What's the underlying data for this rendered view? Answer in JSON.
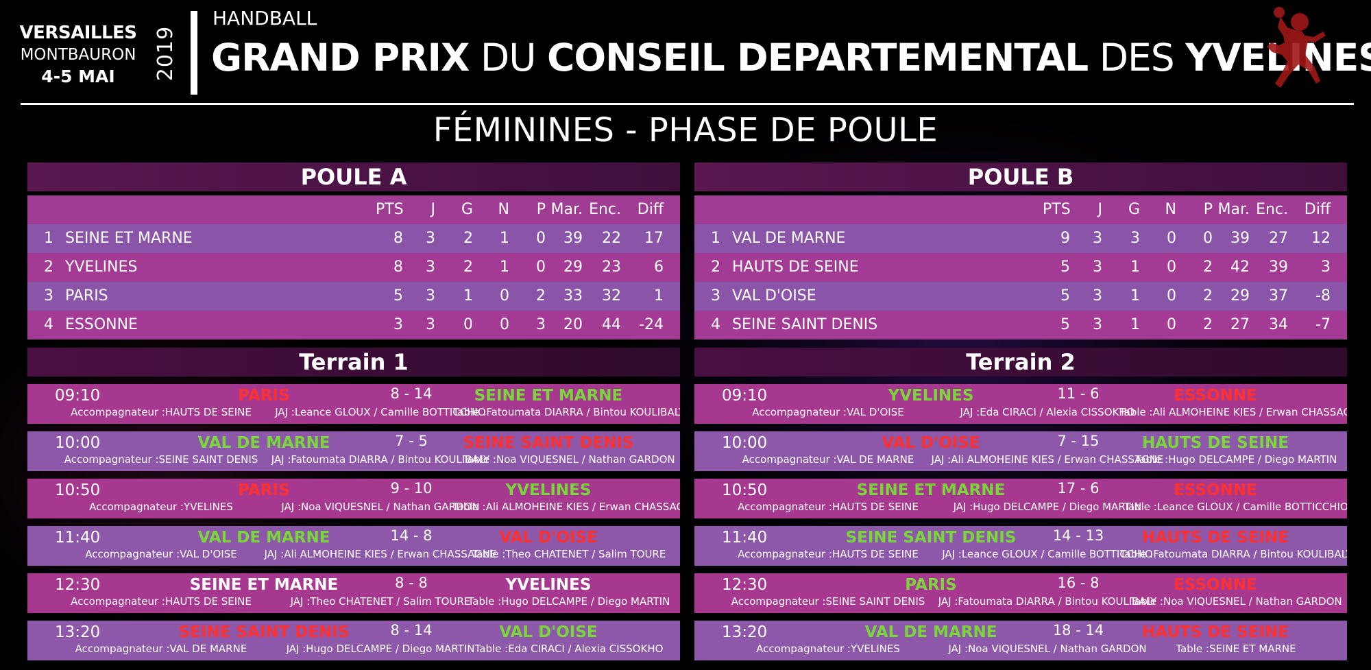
{
  "header": {
    "venue_line1": "VERSAILLES",
    "venue_line2": "MONTBAURON",
    "venue_line3": "4-5 MAI",
    "year": "2019",
    "sport": "HANDBALL",
    "title_part1": "GRAND PRIX",
    "title_part2": " DU ",
    "title_part3": "CONSEIL DEPARTEMENTAL",
    "title_part4": " DES ",
    "title_part5": "YVELINES",
    "subtitle": "FÉMININES - PHASE DE POULE"
  },
  "colors": {
    "win": "#7ad63a",
    "loss": "#ff3030",
    "draw": "#ffffff",
    "panel_pink": "#a33a93",
    "panel_violet": "#8a55a8"
  },
  "poules": [
    {
      "title": "POULE A",
      "columns": {
        "pts": "PTS",
        "j": "J",
        "g": "G",
        "n": "N",
        "p": "P",
        "mar": "Mar.",
        "enc": "Enc.",
        "diff": "Diff"
      },
      "rows": [
        {
          "rank": "1",
          "team": "SEINE ET MARNE",
          "pts": "8",
          "j": "3",
          "g": "2",
          "n": "1",
          "p": "0",
          "mar": "39",
          "enc": "22",
          "diff": "17"
        },
        {
          "rank": "2",
          "team": "YVELINES",
          "pts": "8",
          "j": "3",
          "g": "2",
          "n": "1",
          "p": "0",
          "mar": "29",
          "enc": "23",
          "diff": "6"
        },
        {
          "rank": "3",
          "team": "PARIS",
          "pts": "5",
          "j": "3",
          "g": "1",
          "n": "0",
          "p": "2",
          "mar": "33",
          "enc": "32",
          "diff": "1"
        },
        {
          "rank": "4",
          "team": "ESSONNE",
          "pts": "3",
          "j": "3",
          "g": "0",
          "n": "0",
          "p": "3",
          "mar": "20",
          "enc": "44",
          "diff": "-24"
        }
      ]
    },
    {
      "title": "POULE B",
      "columns": {
        "pts": "PTS",
        "j": "J",
        "g": "G",
        "n": "N",
        "p": "P",
        "mar": "Mar.",
        "enc": "Enc.",
        "diff": "Diff"
      },
      "rows": [
        {
          "rank": "1",
          "team": "VAL DE MARNE",
          "pts": "9",
          "j": "3",
          "g": "3",
          "n": "0",
          "p": "0",
          "mar": "39",
          "enc": "27",
          "diff": "12"
        },
        {
          "rank": "2",
          "team": "HAUTS DE SEINE",
          "pts": "5",
          "j": "3",
          "g": "1",
          "n": "0",
          "p": "2",
          "mar": "42",
          "enc": "39",
          "diff": "3"
        },
        {
          "rank": "3",
          "team": "VAL D'OISE",
          "pts": "5",
          "j": "3",
          "g": "1",
          "n": "0",
          "p": "2",
          "mar": "29",
          "enc": "37",
          "diff": "-8"
        },
        {
          "rank": "4",
          "team": "SEINE SAINT DENIS",
          "pts": "5",
          "j": "3",
          "g": "1",
          "n": "0",
          "p": "2",
          "mar": "27",
          "enc": "34",
          "diff": "-7"
        }
      ]
    }
  ],
  "terrains": [
    {
      "title": "Terrain 1",
      "matches": [
        {
          "time": "09:10",
          "team1": "PARIS",
          "r1": "loss",
          "score": "8 - 14",
          "team2": "SEINE ET MARNE",
          "r2": "win",
          "acc": "Accompagnateur :HAUTS DE SEINE",
          "jaj": "JAJ :Leance GLOUX / Camille BOTTICCHIO",
          "table": "Table :Fatoumata DIARRA / Bintou KOULIBALY"
        },
        {
          "time": "10:00",
          "team1": "VAL DE MARNE",
          "r1": "win",
          "score": "7 - 5",
          "team2": "SEINE SAINT DENIS",
          "r2": "loss",
          "acc": "Accompagnateur :SEINE SAINT DENIS",
          "jaj": "JAJ :Fatoumata DIARRA / Bintou KOULIBALY",
          "table": "Table :Noa VIQUESNEL / Nathan GARDON"
        },
        {
          "time": "10:50",
          "team1": "PARIS",
          "r1": "loss",
          "score": "9 - 10",
          "team2": "YVELINES",
          "r2": "win",
          "acc": "Accompagnateur :YVELINES",
          "jaj": "JAJ :Noa VIQUESNEL / Nathan GARDON",
          "table": "Table :Ali ALMOHEINE KIES / Erwan CHASSAGNE"
        },
        {
          "time": "11:40",
          "team1": "VAL DE MARNE",
          "r1": "win",
          "score": "14 - 8",
          "team2": "VAL D'OISE",
          "r2": "loss",
          "acc": "Accompagnateur :VAL D'OISE",
          "jaj": "JAJ :Ali ALMOHEINE KIES / Erwan CHASSAGNE",
          "table": "Table :Theo CHATENET / Salim TOURE"
        },
        {
          "time": "12:30",
          "team1": "SEINE ET MARNE",
          "r1": "draw",
          "score": "8 - 8",
          "team2": "YVELINES",
          "r2": "draw",
          "acc": "Accompagnateur :HAUTS DE SEINE",
          "jaj": "JAJ :Theo CHATENET / Salim TOURE",
          "table": "Table :Hugo DELCAMPE / Diego MARTIN"
        },
        {
          "time": "13:20",
          "team1": "SEINE SAINT DENIS",
          "r1": "loss",
          "score": "8 - 14",
          "team2": "VAL D'OISE",
          "r2": "win",
          "acc": "Accompagnateur :VAL DE MARNE",
          "jaj": "JAJ :Hugo DELCAMPE / Diego MARTIN",
          "table": "Table :Eda CIRACI / Alexia CISSOKHO"
        }
      ]
    },
    {
      "title": "Terrain 2",
      "matches": [
        {
          "time": "09:10",
          "team1": "YVELINES",
          "r1": "win",
          "score": "11 - 6",
          "team2": "ESSONNE",
          "r2": "loss",
          "acc": "Accompagnateur :VAL D'OISE",
          "jaj": "JAJ :Eda CIRACI / Alexia CISSOKHO",
          "table": "Table :Ali ALMOHEINE KIES / Erwan CHASSAGNE"
        },
        {
          "time": "10:00",
          "team1": "VAL D'OISE",
          "r1": "loss",
          "score": "7 - 15",
          "team2": "HAUTS DE SEINE",
          "r2": "win",
          "acc": "Accompagnateur :VAL DE MARNE",
          "jaj": "JAJ :Ali ALMOHEINE KIES / Erwan CHASSAGNE",
          "table": "Table :Hugo DELCAMPE / Diego MARTIN"
        },
        {
          "time": "10:50",
          "team1": "SEINE ET MARNE",
          "r1": "win",
          "score": "17 - 6",
          "team2": "ESSONNE",
          "r2": "loss",
          "acc": "Accompagnateur :HAUTS DE SEINE",
          "jaj": "JAJ :Hugo DELCAMPE / Diego MARTIN",
          "table": "Table :Leance GLOUX / Camille BOTTICCHIO"
        },
        {
          "time": "11:40",
          "team1": "SEINE SAINT DENIS",
          "r1": "win",
          "score": "14 - 13",
          "team2": "HAUTS DE SEINE",
          "r2": "loss",
          "acc": "Accompagnateur :HAUTS DE SEINE",
          "jaj": "JAJ :Leance GLOUX / Camille BOTTICCHIO",
          "table": "Table :Fatoumata DIARRA / Bintou KOULIBALY"
        },
        {
          "time": "12:30",
          "team1": "PARIS",
          "r1": "win",
          "score": "16 - 8",
          "team2": "ESSONNE",
          "r2": "loss",
          "acc": "Accompagnateur :SEINE SAINT DENIS",
          "jaj": "JAJ :Fatoumata DIARRA / Bintou KOULIBALY",
          "table": "Table :Noa VIQUESNEL / Nathan GARDON"
        },
        {
          "time": "13:20",
          "team1": "VAL DE MARNE",
          "r1": "win",
          "score": "18 - 14",
          "team2": "HAUTS DE SEINE",
          "r2": "loss",
          "acc": "Accompagnateur :YVELINES",
          "jaj": "JAJ :Noa VIQUESNEL / Nathan GARDON",
          "table": "Table :SEINE ET MARNE"
        }
      ]
    }
  ]
}
